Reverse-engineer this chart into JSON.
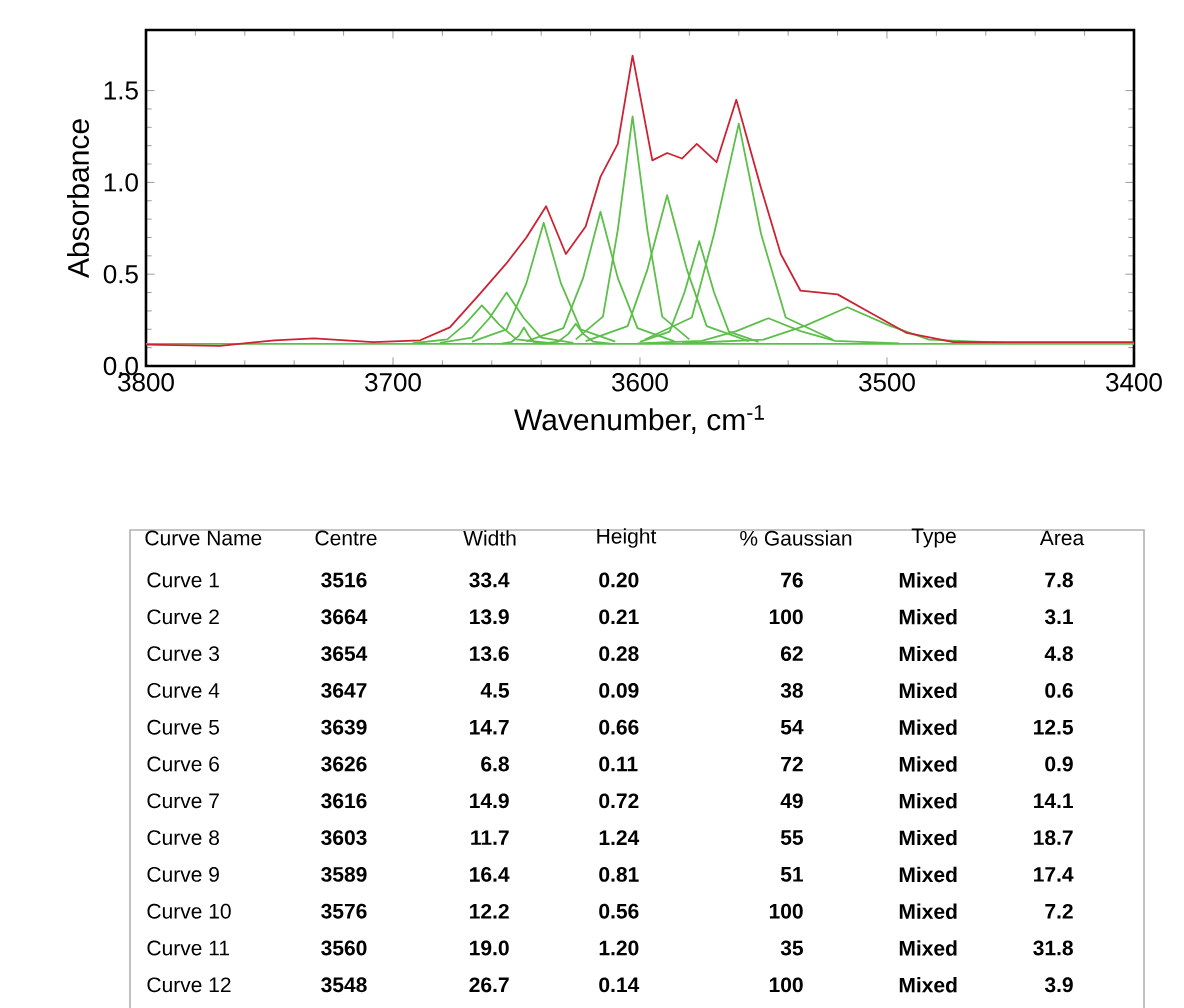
{
  "chart_data": {
    "type": "line",
    "xlabel": "Wavenumber, cm$^{-1}$",
    "ylabel": "Absorbance",
    "xlim": [
      3800,
      3400
    ],
    "xticks": [
      3800,
      3700,
      3600,
      3500,
      3400
    ],
    "ylim": [
      0,
      1.83
    ],
    "yticks": [
      {
        "value": 0,
        "label": "0.0"
      },
      {
        "value": 0.5,
        "label": "0.5"
      },
      {
        "value": 1,
        "label": "1.0"
      },
      {
        "value": 1.5,
        "label": "1.5"
      }
    ],
    "series": [
      {
        "color": "#5cbf4a",
        "x": [
          3583,
          3550,
          3533,
          3516,
          3499,
          3483,
          3449
        ],
        "values": [
          0.124,
          0.144,
          0.22,
          0.32,
          0.22,
          0.144,
          0.124
        ]
      },
      {
        "color": "#5cbf4a",
        "x": [
          3692,
          3678,
          3671,
          3664,
          3657,
          3650,
          3636
        ],
        "values": [
          0.124,
          0.145,
          0.225,
          0.33,
          0.225,
          0.145,
          0.124
        ]
      },
      {
        "color": "#5cbf4a",
        "x": [
          3681,
          3668,
          3661,
          3654,
          3647,
          3640,
          3627
        ],
        "values": [
          0.126,
          0.154,
          0.26,
          0.4,
          0.26,
          0.154,
          0.126
        ]
      },
      {
        "color": "#5cbf4a",
        "x": [
          3656,
          3652,
          3649,
          3647,
          3645,
          3643,
          3638
        ],
        "values": [
          0.122,
          0.131,
          0.165,
          0.21,
          0.165,
          0.131,
          0.122
        ]
      },
      {
        "color": "#5cbf4a",
        "x": [
          3668,
          3654,
          3646,
          3639,
          3632,
          3624,
          3610
        ],
        "values": [
          0.133,
          0.199,
          0.45,
          0.78,
          0.45,
          0.199,
          0.133
        ]
      },
      {
        "color": "#5cbf4a",
        "x": [
          3640,
          3633,
          3629,
          3626,
          3623,
          3619,
          3612
        ],
        "values": [
          0.122,
          0.133,
          0.175,
          0.23,
          0.175,
          0.133,
          0.122
        ]
      },
      {
        "color": "#5cbf4a",
        "x": [
          3646,
          3631,
          3623,
          3616,
          3609,
          3601,
          3586
        ],
        "values": [
          0.134,
          0.206,
          0.48,
          0.84,
          0.48,
          0.206,
          0.134
        ]
      },
      {
        "color": "#5cbf4a",
        "x": [
          3626,
          3615,
          3609,
          3603,
          3597,
          3591,
          3580
        ],
        "values": [
          0.145,
          0.269,
          0.74,
          1.36,
          0.74,
          0.269,
          0.145
        ]
      },
      {
        "color": "#5cbf4a",
        "x": [
          3622,
          3605,
          3597,
          3589,
          3581,
          3573,
          3556
        ],
        "values": [
          0.136,
          0.217,
          0.525,
          0.93,
          0.525,
          0.217,
          0.136
        ]
      },
      {
        "color": "#5cbf4a",
        "x": [
          3600,
          3588,
          3582,
          3576,
          3570,
          3564,
          3552
        ],
        "values": [
          0.131,
          0.187,
          0.4,
          0.68,
          0.4,
          0.187,
          0.131
        ]
      },
      {
        "color": "#5cbf4a",
        "x": [
          3598,
          3579,
          3570,
          3560,
          3551,
          3541,
          3522
        ],
        "values": [
          0.144,
          0.264,
          0.72,
          1.32,
          0.72,
          0.264,
          0.144
        ]
      },
      {
        "color": "#5cbf4a",
        "x": [
          3601,
          3575,
          3561,
          3548,
          3535,
          3521,
          3495
        ],
        "values": [
          0.123,
          0.137,
          0.19,
          0.26,
          0.19,
          0.137,
          0.123
        ]
      },
      {
        "color": "#5cbf4a",
        "x": [
          3800,
          3400
        ],
        "values": [
          0.12,
          0.12
        ]
      },
      {
        "color": "#cc2233",
        "x": [
          3800,
          3770,
          3748,
          3732,
          3708,
          3689,
          3677,
          3665,
          3654,
          3646,
          3638,
          3630,
          3622,
          3616,
          3609,
          3603,
          3595,
          3589,
          3583,
          3577,
          3569,
          3561,
          3551,
          3543,
          3535,
          3520,
          3508,
          3492,
          3473,
          3400
        ],
        "values": [
          0.116,
          0.11,
          0.14,
          0.15,
          0.13,
          0.14,
          0.21,
          0.39,
          0.56,
          0.7,
          0.87,
          0.61,
          0.76,
          1.03,
          1.21,
          1.69,
          1.12,
          1.16,
          1.13,
          1.21,
          1.11,
          1.45,
          0.97,
          0.61,
          0.41,
          0.39,
          0.3,
          0.18,
          0.13,
          0.13
        ]
      }
    ],
    "annotations": [
      "Curve Name",
      "Centre",
      "Width",
      "Height",
      "% Gaussian",
      "Type",
      "Area",
      "Curve 1",
      "3516",
      "33.4",
      "0.20",
      "76",
      "Mixed",
      "7.8",
      "Curve 2",
      "3664",
      "13.9",
      "0.21",
      "100",
      "Mixed",
      "3.1",
      "Curve 3",
      "3654",
      "13.6",
      "0.28",
      "62",
      "Mixed",
      "4.8",
      "Curve 4",
      "3647",
      "4.5",
      "0.09",
      "38",
      "Mixed",
      "0.6",
      "Curve 5",
      "3639",
      "14.7",
      "0.66",
      "54",
      "Mixed",
      "12.5",
      "Curve 6",
      "3626",
      "6.8",
      "0.11",
      "72",
      "Mixed",
      "0.9",
      "Curve 7",
      "3616",
      "14.9",
      "0.72",
      "49",
      "Mixed",
      "14.1",
      "Curve 8",
      "3603",
      "11.7",
      "1.24",
      "55",
      "Mixed",
      "18.7",
      "Curve 9",
      "3589",
      "16.4",
      "0.81",
      "51",
      "Mixed",
      "17.4",
      "Curve 10",
      "3576",
      "12.2",
      "0.56",
      "100",
      "Mixed",
      "7.2",
      "Curve 11",
      "3560",
      "19.0",
      "1.20",
      "35",
      "Mixed",
      "31.8",
      "Curve 12",
      "3548",
      "26.7",
      "0.14",
      "100",
      "Mixed",
      "3.9"
    ]
  }
}
